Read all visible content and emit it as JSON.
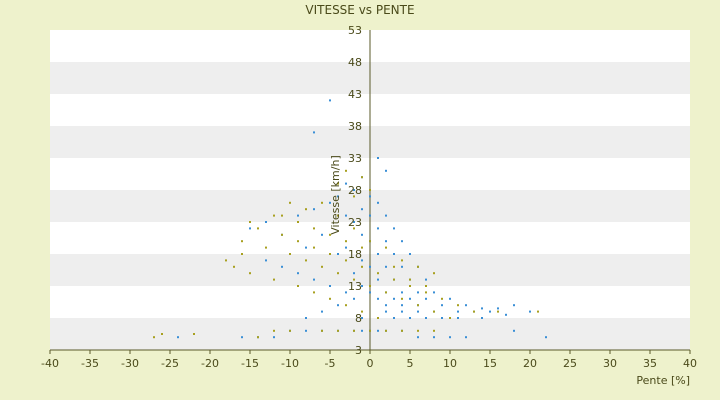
{
  "chart_data": {
    "type": "scatter",
    "title": "VITESSE vs PENTE",
    "xlabel": "Pente [%]",
    "ylabel": "Vitesse [km/h]",
    "xlim": [
      -40,
      40
    ],
    "ylim": [
      3,
      53
    ],
    "x_ticks": [
      "-40",
      "-35",
      "-30",
      "-25",
      "-20",
      "-15",
      "-10",
      "-5",
      "0",
      "5",
      "10",
      "15",
      "20",
      "25",
      "30",
      "35",
      "40"
    ],
    "y_ticks": [
      "3",
      "8",
      "13",
      "18",
      "23",
      "28",
      "33",
      "38",
      "43",
      "48",
      "53"
    ],
    "grid": "alternating horizontal bands",
    "legend": "none",
    "colors": {
      "plot_background": "#ffffff",
      "band": "#eeeeee",
      "page_background": "#eef2cc",
      "series_1": "#3a8fd6",
      "series_2": "#a8a020",
      "axis": "#5a5a2a",
      "text": "#4a4a1a"
    },
    "series": [
      {
        "color": "#3a8fd6",
        "points": [
          [
            -5,
            42
          ],
          [
            -7,
            37
          ],
          [
            1,
            33
          ],
          [
            2,
            31
          ],
          [
            -1,
            30
          ],
          [
            -3,
            29
          ],
          [
            -2,
            28
          ],
          [
            0,
            27
          ],
          [
            -4,
            27
          ],
          [
            1,
            26
          ],
          [
            -1,
            25
          ],
          [
            2,
            24
          ],
          [
            0,
            24
          ],
          [
            -2,
            23
          ],
          [
            3,
            22
          ],
          [
            1,
            22
          ],
          [
            -1,
            21
          ],
          [
            4,
            20
          ],
          [
            2,
            20
          ],
          [
            0,
            20
          ],
          [
            -3,
            19
          ],
          [
            5,
            18
          ],
          [
            3,
            18
          ],
          [
            1,
            18
          ],
          [
            -1,
            17
          ],
          [
            6,
            16
          ],
          [
            4,
            16
          ],
          [
            2,
            16
          ],
          [
            0,
            16
          ],
          [
            -2,
            15
          ],
          [
            7,
            14
          ],
          [
            5,
            14
          ],
          [
            3,
            14
          ],
          [
            1,
            14
          ],
          [
            -1,
            13
          ],
          [
            8,
            12
          ],
          [
            6,
            12
          ],
          [
            4,
            12
          ],
          [
            2,
            12
          ],
          [
            0,
            12
          ],
          [
            10,
            11
          ],
          [
            7,
            11
          ],
          [
            5,
            11
          ],
          [
            3,
            11
          ],
          [
            1,
            11
          ],
          [
            12,
            10
          ],
          [
            9,
            10
          ],
          [
            6,
            10
          ],
          [
            4,
            10
          ],
          [
            2,
            10
          ],
          [
            14,
            9.5
          ],
          [
            16,
            9.5
          ],
          [
            18,
            10
          ],
          [
            15,
            9
          ],
          [
            13,
            9
          ],
          [
            11,
            9
          ],
          [
            8,
            9
          ],
          [
            6,
            9
          ],
          [
            4,
            9
          ],
          [
            2,
            9
          ],
          [
            20,
            9
          ],
          [
            17,
            8.5
          ],
          [
            14,
            8
          ],
          [
            11,
            8
          ],
          [
            9,
            8
          ],
          [
            7,
            8
          ],
          [
            5,
            8
          ],
          [
            3,
            8
          ],
          [
            1,
            8
          ],
          [
            -1,
            8
          ],
          [
            -2,
            6
          ],
          [
            -4,
            6
          ],
          [
            -6,
            6
          ],
          [
            -8,
            6
          ],
          [
            -10,
            6
          ],
          [
            0,
            6
          ],
          [
            2,
            6
          ],
          [
            4,
            6
          ],
          [
            6,
            5
          ],
          [
            8,
            5
          ],
          [
            10,
            5
          ],
          [
            12,
            5
          ],
          [
            -12,
            5
          ],
          [
            -14,
            5
          ],
          [
            -16,
            5
          ],
          [
            -24,
            5
          ],
          [
            22,
            5
          ],
          [
            18,
            6
          ],
          [
            -1,
            6
          ],
          [
            1,
            6
          ],
          [
            -9,
            24
          ],
          [
            -11,
            21
          ],
          [
            -13,
            23
          ],
          [
            -15,
            22
          ],
          [
            -7,
            25
          ],
          [
            -5,
            26
          ],
          [
            -3,
            24
          ],
          [
            -6,
            21
          ],
          [
            -8,
            19
          ],
          [
            -4,
            18
          ],
          [
            -13,
            17
          ],
          [
            -11,
            16
          ],
          [
            -9,
            15
          ],
          [
            -7,
            14
          ],
          [
            -5,
            13
          ],
          [
            -3,
            12
          ],
          [
            -2,
            11
          ],
          [
            -4,
            10
          ],
          [
            -6,
            9
          ],
          [
            -8,
            8
          ]
        ]
      },
      {
        "color": "#a8a020",
        "points": [
          [
            -3,
            31
          ],
          [
            -1,
            30
          ],
          [
            -4,
            29
          ],
          [
            0,
            28
          ],
          [
            -2,
            27
          ],
          [
            -6,
            26
          ],
          [
            -8,
            25
          ],
          [
            -10,
            26
          ],
          [
            -12,
            24
          ],
          [
            -15,
            23
          ],
          [
            -16,
            20
          ],
          [
            -14,
            22
          ],
          [
            -11,
            21
          ],
          [
            -9,
            20
          ],
          [
            -7,
            19
          ],
          [
            -5,
            18
          ],
          [
            -3,
            17
          ],
          [
            -1,
            16
          ],
          [
            1,
            15
          ],
          [
            3,
            14
          ],
          [
            5,
            13
          ],
          [
            7,
            12
          ],
          [
            9,
            11
          ],
          [
            11,
            10
          ],
          [
            13,
            9
          ],
          [
            16,
            9
          ],
          [
            -4,
            24
          ],
          [
            -2,
            22
          ],
          [
            0,
            20
          ],
          [
            2,
            19
          ],
          [
            4,
            17
          ],
          [
            6,
            16
          ],
          [
            8,
            15
          ],
          [
            -16,
            18
          ],
          [
            -13,
            19
          ],
          [
            -10,
            18
          ],
          [
            -8,
            17
          ],
          [
            -6,
            16
          ],
          [
            -4,
            15
          ],
          [
            -2,
            14
          ],
          [
            0,
            13
          ],
          [
            2,
            12
          ],
          [
            4,
            11
          ],
          [
            6,
            10
          ],
          [
            8,
            9
          ],
          [
            10,
            8
          ],
          [
            -27,
            5
          ],
          [
            -26,
            5.5
          ],
          [
            -22,
            5.5
          ],
          [
            -14,
            5
          ],
          [
            -12,
            6
          ],
          [
            -10,
            6
          ],
          [
            -6,
            6
          ],
          [
            -4,
            6
          ],
          [
            -2,
            6
          ],
          [
            0,
            6
          ],
          [
            2,
            6
          ],
          [
            4,
            6
          ],
          [
            6,
            6
          ],
          [
            8,
            6
          ],
          [
            -18,
            17
          ],
          [
            -17,
            16
          ],
          [
            -15,
            15
          ],
          [
            -12,
            14
          ],
          [
            -9,
            13
          ],
          [
            -7,
            12
          ],
          [
            -5,
            11
          ],
          [
            -3,
            10
          ],
          [
            -1,
            9
          ],
          [
            1,
            8
          ],
          [
            -11,
            24
          ],
          [
            -9,
            23
          ],
          [
            -7,
            22
          ],
          [
            -5,
            21
          ],
          [
            -3,
            20
          ],
          [
            -1,
            19
          ],
          [
            3,
            16
          ],
          [
            5,
            14
          ],
          [
            7,
            13
          ],
          [
            21,
            9
          ]
        ]
      }
    ]
  }
}
